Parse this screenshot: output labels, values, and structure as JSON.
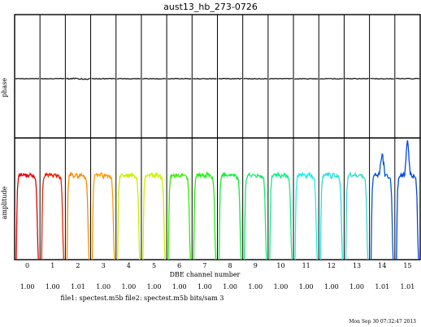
{
  "chart_data": {
    "type": "line",
    "title": "aust13_hb_273-0726",
    "xlabel": "DBE channel number",
    "panels": [
      {
        "name": "phase",
        "ylabel": "phase"
      },
      {
        "name": "amplitude",
        "ylabel": "amplitude"
      }
    ],
    "channels": [
      "0",
      "1",
      "2",
      "3",
      "4",
      "5",
      "6",
      "7",
      "8",
      "9",
      "10",
      "11",
      "12",
      "13",
      "14",
      "15"
    ],
    "ratios": [
      "1.00",
      "1.00",
      "1.01",
      "1.00",
      "1.00",
      "1.00",
      "1.00",
      "1.00",
      "1.00",
      "1.00",
      "1.00",
      "1.00",
      "1.00",
      "1.00",
      "1.01",
      "1.01"
    ],
    "channel_colors": [
      "#e60000",
      "#ee2200",
      "#ff8800",
      "#ff9900",
      "#ccee00",
      "#ccee00",
      "#33ee00",
      "#22ee11",
      "#11ee33",
      "#11ee66",
      "#11ee88",
      "#22eeee",
      "#22dddd",
      "#33ddcc",
      "#0055dd",
      "#0044ee"
    ],
    "amplitude_profile": {
      "x": [
        0.0,
        0.04,
        0.1,
        0.2,
        0.3,
        0.4,
        0.5,
        0.6,
        0.7,
        0.8,
        0.88,
        0.93,
        0.97,
        1.0
      ],
      "y": [
        0.0,
        0.55,
        0.68,
        0.7,
        0.69,
        0.7,
        0.68,
        0.7,
        0.69,
        0.68,
        0.66,
        0.5,
        0.15,
        0.0
      ]
    },
    "amplitude_peaks": [
      0.69,
      0.7,
      0.69,
      0.69,
      0.69,
      0.7,
      0.72,
      0.7,
      0.7,
      0.7,
      0.71,
      0.7,
      0.7,
      0.7,
      0.88,
      0.98
    ],
    "phase_level": 0.5
  },
  "footer": {
    "files": "file1: spectest.m5b  file2: spectest.m5b  bits/sam 3",
    "timestamp": "Mon Sep 30 07:32:47 2013"
  }
}
